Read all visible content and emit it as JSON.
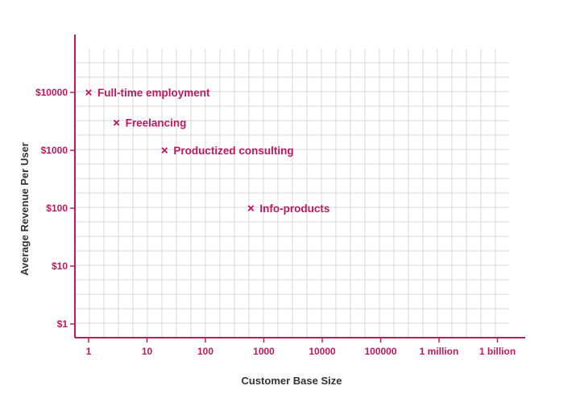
{
  "colors": {
    "accent": "#c2185b",
    "grid": "#d9d9d9",
    "axis_title": "#333333"
  },
  "chart_data": {
    "type": "scatter",
    "title": "",
    "xlabel": "Customer Base Size",
    "ylabel": "Average Revenue Per User",
    "x_scale": "log",
    "y_scale": "log",
    "x_ticks": [
      {
        "value": 1,
        "label": "1"
      },
      {
        "value": 10,
        "label": "10"
      },
      {
        "value": 100,
        "label": "100"
      },
      {
        "value": 1000,
        "label": "1000"
      },
      {
        "value": 10000,
        "label": "10000"
      },
      {
        "value": 100000,
        "label": "100000"
      },
      {
        "value": 1000000,
        "label": "1 million"
      },
      {
        "value": 1000000000,
        "label": "1 billion"
      }
    ],
    "y_ticks": [
      {
        "value": 1,
        "label": "$1"
      },
      {
        "value": 10,
        "label": "$10"
      },
      {
        "value": 100,
        "label": "$100"
      },
      {
        "value": 1000,
        "label": "$1000"
      },
      {
        "value": 10000,
        "label": "$10000"
      }
    ],
    "grid": true,
    "points": [
      {
        "label": "Full-time employment",
        "x": 1,
        "y": 10000
      },
      {
        "label": "Freelancing",
        "x": 3,
        "y": 3000
      },
      {
        "label": "Productized consulting",
        "x": 20,
        "y": 1000
      },
      {
        "label": "Info-products",
        "x": 600,
        "y": 100
      }
    ]
  }
}
